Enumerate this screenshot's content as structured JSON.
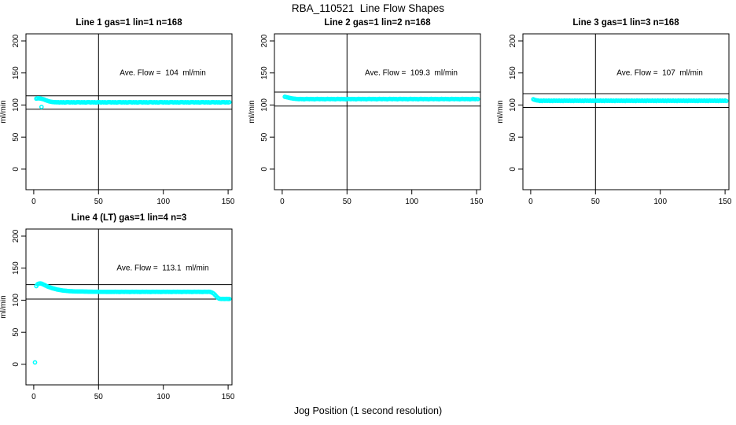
{
  "figure": {
    "title": "RBA_110521  Line Flow Shapes",
    "x_axis_label": "Jog Position (1 second resolution)"
  },
  "colors": {
    "points": "#00ffff",
    "axis": "#000000",
    "background": "#ffffff"
  },
  "chart_data": {
    "type": "scatter",
    "title": "RBA_110521  Line Flow Shapes",
    "xlabel": "Jog Position (1 second resolution)",
    "ylabel": "ml/min",
    "marker": "open-circle",
    "point_color": "#00ffff",
    "grid": false,
    "xticks": [
      0,
      50,
      100,
      150
    ],
    "yticks": [
      0,
      50,
      100,
      150,
      200
    ],
    "xlim": [
      -6,
      153
    ],
    "ylim": [
      -32,
      211
    ],
    "vline_x": 50,
    "ref_band": "average flow plus/minus 10%",
    "subplots": [
      {
        "title": "Line 1 gas=1 lin=1 n=168",
        "annotation": "Ave. Flow =  104  ml/min",
        "ave_flow": 104,
        "n": 168,
        "ref_lines": [
          114.4,
          93.6
        ],
        "x_start": 2,
        "y": [
          110.0,
          110.5,
          110.4,
          110.2,
          109.8,
          109.3,
          108.6,
          107.8,
          107.0,
          106.3,
          105.7,
          105.2,
          104.8,
          104.6,
          104.4,
          104.3,
          104.2,
          104.3,
          104.0,
          104.5,
          104.1,
          104.4,
          103.9,
          104.2,
          104.6,
          104.3,
          104.0,
          104.5,
          104.1,
          104.4,
          103.9,
          104.2,
          104.6,
          104.3,
          104.0,
          104.5,
          104.1,
          104.4,
          103.9,
          104.2,
          104.6,
          104.3,
          104.0,
          104.5,
          104.1,
          104.4,
          103.9,
          104.2,
          104.6,
          104.3,
          104.0,
          104.5,
          104.1,
          104.4,
          103.9,
          104.2,
          104.6,
          104.3,
          104.0,
          104.5,
          104.1,
          104.4,
          103.9,
          104.2,
          104.6,
          104.3,
          104.0,
          104.5,
          104.1,
          104.4,
          103.9,
          104.2,
          104.6,
          104.3,
          104.0,
          104.5,
          104.1,
          104.4,
          103.9,
          104.2,
          104.6,
          104.3,
          104.0,
          104.5,
          104.1,
          104.4,
          103.9,
          104.2,
          104.6,
          104.3,
          104.0,
          104.5,
          104.1,
          104.4,
          103.9,
          104.2,
          104.6,
          104.3,
          104.0,
          104.5,
          104.1,
          104.4,
          103.9,
          104.2,
          104.6,
          104.3,
          104.0,
          104.5,
          104.1,
          104.4,
          103.9,
          104.2,
          104.6,
          104.3,
          104.0,
          104.5,
          104.1,
          104.4,
          103.9,
          104.2,
          104.6,
          104.3,
          104.0,
          104.5,
          104.1,
          104.4,
          103.9,
          104.2,
          104.6,
          104.3,
          104.0,
          104.5,
          104.1,
          104.4,
          103.9,
          104.2,
          104.6,
          104.3,
          104.0,
          104.5,
          104.1,
          104.4,
          103.9,
          104.2,
          104.6,
          104.3,
          104.0,
          104.5,
          104.1,
          104.4
        ],
        "outliers": [
          [
            6,
            97
          ]
        ]
      },
      {
        "title": "Line 2 gas=1 lin=2 n=168",
        "annotation": "Ave. Flow =  109.3  ml/min",
        "ave_flow": 109.3,
        "n": 168,
        "ref_lines": [
          120.2,
          98.4
        ],
        "x_start": 2,
        "y": [
          112.8,
          112.4,
          112.0,
          111.5,
          111.0,
          110.6,
          110.2,
          109.9,
          109.7,
          109.5,
          109.4,
          109.1,
          109.5,
          109.2,
          109.3,
          109.0,
          109.4,
          109.6,
          109.4,
          109.1,
          109.5,
          109.2,
          109.3,
          109.0,
          109.4,
          109.6,
          109.4,
          109.1,
          109.5,
          109.2,
          109.3,
          109.0,
          109.4,
          109.6,
          109.4,
          109.1,
          109.5,
          109.2,
          109.3,
          109.0,
          109.4,
          109.6,
          109.4,
          109.1,
          109.5,
          109.2,
          109.3,
          109.0,
          109.4,
          109.6,
          109.4,
          109.1,
          109.5,
          109.2,
          109.3,
          109.0,
          109.4,
          109.6,
          109.4,
          109.1,
          109.5,
          109.2,
          109.3,
          109.0,
          109.4,
          109.6,
          109.4,
          109.1,
          109.5,
          109.2,
          109.3,
          109.0,
          109.4,
          109.6,
          109.4,
          109.1,
          109.5,
          109.2,
          109.3,
          109.0,
          109.4,
          109.6,
          109.4,
          109.1,
          109.5,
          109.2,
          109.3,
          109.0,
          109.4,
          109.6,
          109.4,
          109.1,
          109.5,
          109.2,
          109.3,
          109.0,
          109.4,
          109.6,
          109.4,
          109.1,
          109.5,
          109.2,
          109.3,
          109.0,
          109.4,
          109.6,
          109.4,
          109.1,
          109.5,
          109.2,
          109.3,
          109.0,
          109.4,
          109.6,
          109.4,
          109.1,
          109.5,
          109.2,
          109.3,
          109.0,
          109.4,
          109.6,
          109.4,
          109.1,
          109.5,
          109.2,
          109.3,
          109.0,
          109.4,
          109.6,
          109.4,
          109.1,
          109.5,
          109.2,
          109.3,
          109.0,
          109.4,
          109.6,
          109.4,
          109.1,
          109.5,
          109.2,
          109.3,
          109.0,
          109.4,
          109.6,
          109.4,
          109.1,
          109.5,
          109.2
        ],
        "outliers": []
      },
      {
        "title": "Line 3 gas=1 lin=3 n=168",
        "annotation": "Ave. Flow =  107  ml/min",
        "ave_flow": 107,
        "n": 168,
        "ref_lines": [
          117.7,
          96.3
        ],
        "x_start": 2,
        "y": [
          109.0,
          108.2,
          107.6,
          107.2,
          107.0,
          106.3,
          106.9,
          106.2,
          107.1,
          106.5,
          106.8,
          106.4,
          107.0,
          106.3,
          106.9,
          106.2,
          107.1,
          106.5,
          106.8,
          106.4,
          107.0,
          106.3,
          106.9,
          106.2,
          107.1,
          106.5,
          106.8,
          106.4,
          107.0,
          106.3,
          106.9,
          106.2,
          107.1,
          106.5,
          106.8,
          106.4,
          107.0,
          106.3,
          106.9,
          106.2,
          107.1,
          106.5,
          106.8,
          106.4,
          107.0,
          106.3,
          106.9,
          106.2,
          107.1,
          106.5,
          106.8,
          106.4,
          107.0,
          106.3,
          106.9,
          106.2,
          107.1,
          106.5,
          106.8,
          106.4,
          107.0,
          106.3,
          106.9,
          106.2,
          107.1,
          106.5,
          106.8,
          106.4,
          107.0,
          106.3,
          106.9,
          106.2,
          107.1,
          106.5,
          106.8,
          106.4,
          107.0,
          106.3,
          106.9,
          106.2,
          107.1,
          106.5,
          106.8,
          106.4,
          107.0,
          106.3,
          106.9,
          106.2,
          107.1,
          106.5,
          106.8,
          106.4,
          107.0,
          106.3,
          106.9,
          106.2,
          107.1,
          106.5,
          106.8,
          106.4,
          107.0,
          106.3,
          106.9,
          106.2,
          107.1,
          106.5,
          106.8,
          106.4,
          107.0,
          106.3,
          106.9,
          106.2,
          107.1,
          106.5,
          106.8,
          106.4,
          107.0,
          106.3,
          106.9,
          106.2,
          107.1,
          106.5,
          106.8,
          106.4,
          107.0,
          106.3,
          106.9,
          106.2,
          107.1,
          106.5,
          106.8,
          106.4,
          107.0,
          106.3,
          106.9,
          106.2,
          107.1,
          106.5,
          106.8,
          106.4,
          107.0,
          106.3,
          106.9,
          106.2,
          107.1,
          106.5,
          106.8,
          106.4,
          107.0,
          106.3
        ],
        "outliers": []
      },
      {
        "title": "Line 4 (LT) gas=1 lin=4 n=3",
        "annotation": "Ave. Flow =  113.1  ml/min",
        "ave_flow": 113.1,
        "n": 3,
        "ref_lines": [
          124.4,
          101.8
        ],
        "x_start": 2,
        "y": [
          122.0,
          125.0,
          126.0,
          126.2,
          125.8,
          125.0,
          124.0,
          123.0,
          122.0,
          121.2,
          120.4,
          119.7,
          119.0,
          118.4,
          117.8,
          117.3,
          116.8,
          116.4,
          116.0,
          115.6,
          115.3,
          115.0,
          114.8,
          114.6,
          114.4,
          114.2,
          114.1,
          114.0,
          113.9,
          113.8,
          113.7,
          113.7,
          113.6,
          113.6,
          113.5,
          113.5,
          113.5,
          113.4,
          113.4,
          113.4,
          113.3,
          113.3,
          113.3,
          113.3,
          113.2,
          113.2,
          113.2,
          113.2,
          113.2,
          113.1,
          113.1,
          113.1,
          113.1,
          113.1,
          113.0,
          113.0,
          113.0,
          113.0,
          113.0,
          113.1,
          112.9,
          113.2,
          113.0,
          113.1,
          112.8,
          113.0,
          113.2,
          113.1,
          112.9,
          113.2,
          113.0,
          113.1,
          112.8,
          113.0,
          113.2,
          113.1,
          112.9,
          113.2,
          113.0,
          113.1,
          112.8,
          113.0,
          113.2,
          113.1,
          112.9,
          113.2,
          113.0,
          113.1,
          112.8,
          113.0,
          113.2,
          113.1,
          112.9,
          113.2,
          113.0,
          113.1,
          112.8,
          113.0,
          113.2,
          113.1,
          112.9,
          113.2,
          113.0,
          113.1,
          112.8,
          113.0,
          113.2,
          113.1,
          112.9,
          113.2,
          113.0,
          113.1,
          112.8,
          113.0,
          113.2,
          113.1,
          112.9,
          113.2,
          113.0,
          113.1,
          112.8,
          113.0,
          113.2,
          113.1,
          112.9,
          113.2,
          113.0,
          113.1,
          112.8,
          113.0,
          113.2,
          113.1,
          112.9,
          113.2,
          113.0,
          112.5,
          111.5,
          110.2,
          108.2,
          106.0,
          104.0,
          102.6,
          102.2,
          102.0,
          102.1,
          101.9,
          102.0,
          102.1,
          101.9,
          102.0
        ],
        "outliers": [
          [
            1,
            3
          ]
        ]
      }
    ]
  }
}
